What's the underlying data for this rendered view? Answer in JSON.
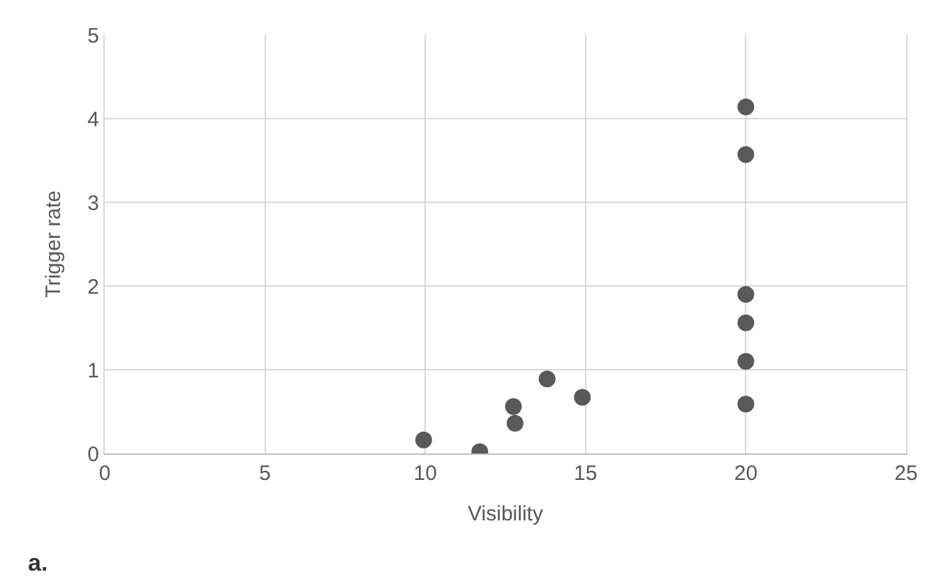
{
  "chart_data": {
    "type": "scatter",
    "xlabel": "Visibility",
    "ylabel": "Trigger rate",
    "x": [
      9.95,
      11.7,
      12.75,
      12.8,
      13.8,
      14.9,
      20,
      20,
      20,
      20,
      20,
      20
    ],
    "series": [
      {
        "color": "#595959",
        "values": [
          0.16,
          0.02,
          0.56,
          0.36,
          0.89,
          0.67,
          4.14,
          3.57,
          1.9,
          1.56,
          1.1,
          0.59
        ]
      }
    ],
    "xlim": [
      0,
      25
    ],
    "xticks": [
      0,
      5,
      10,
      15,
      20,
      25
    ],
    "ylim": [
      0,
      5
    ],
    "yticks": [
      0,
      1,
      2,
      3,
      4,
      5
    ],
    "grid": true,
    "marker": "circle",
    "legend": false,
    "annotations": [
      "a."
    ]
  }
}
